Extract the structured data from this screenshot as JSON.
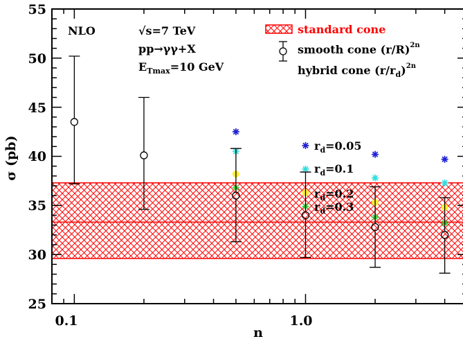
{
  "chart_data": {
    "type": "scatter",
    "xscale": "log",
    "xlim": [
      0.08,
      5.0
    ],
    "ylim": [
      25,
      55
    ],
    "xlabel": "n",
    "ylabel": "σ  (pb)",
    "xticks": [
      {
        "value": 0.1,
        "label": "0.1"
      },
      {
        "value": 1.0,
        "label": "1.0"
      }
    ],
    "yticks": [
      {
        "value": 25,
        "label": "25"
      },
      {
        "value": 30,
        "label": "30"
      },
      {
        "value": 35,
        "label": "35"
      },
      {
        "value": 40,
        "label": "40"
      },
      {
        "value": 45,
        "label": "45"
      },
      {
        "value": 50,
        "label": "50"
      },
      {
        "value": 55,
        "label": "55"
      }
    ],
    "annotations": {
      "order": "NLO",
      "energy": "√s=7 TeV",
      "process": "pp→γγ+X",
      "et_main": "E",
      "et_sub": "Tmax",
      "et_rest": "=10 GeV"
    },
    "legend": {
      "standard": "standard cone",
      "smooth_main": "smooth cone (r/R)",
      "smooth_sup": "2n",
      "hybrid_main": "hybrid cone (r/r",
      "hybrid_sub": "d",
      "hybrid_close": ")",
      "hybrid_sup": "2n"
    },
    "band": {
      "name": "standard cone",
      "low": 29.6,
      "central": 33.3,
      "high": 37.3,
      "color": "#ff0000"
    },
    "smooth_cone": {
      "name": "smooth cone (r/R)^2n",
      "x": [
        0.1,
        0.2,
        0.5,
        1.0,
        2.0,
        4.0
      ],
      "y": [
        43.5,
        40.1,
        36.0,
        34.0,
        32.8,
        32.0
      ],
      "yerr_low": [
        37.2,
        34.6,
        31.3,
        29.7,
        28.7,
        28.1
      ],
      "yerr_high": [
        50.2,
        46.0,
        40.8,
        38.4,
        36.9,
        35.8
      ]
    },
    "hybrid_cone": [
      {
        "label_main": "r",
        "label_sub": "d",
        "label_rest": "=0.05",
        "color": "#1f1fd6",
        "x": [
          0.5,
          1.0,
          2.0,
          4.0
        ],
        "y": [
          42.5,
          41.1,
          40.2,
          39.7
        ]
      },
      {
        "label_main": "r",
        "label_sub": "d",
        "label_rest": "=0.1",
        "color": "#33dddd",
        "x": [
          0.5,
          1.0,
          2.0,
          4.0
        ],
        "y": [
          40.5,
          38.7,
          37.8,
          37.3
        ]
      },
      {
        "label_main": "r",
        "label_sub": "d",
        "label_rest": "=0.2",
        "color": "#ffee33",
        "x": [
          0.5,
          1.0,
          2.0,
          4.0
        ],
        "y": [
          38.2,
          36.3,
          35.3,
          34.8
        ]
      },
      {
        "label_main": "r",
        "label_sub": "d",
        "label_rest": "=0.3",
        "color": "#33cc33",
        "x": [
          0.5,
          1.0,
          2.0,
          4.0
        ],
        "y": [
          36.8,
          34.9,
          33.8,
          33.2
        ]
      }
    ]
  }
}
